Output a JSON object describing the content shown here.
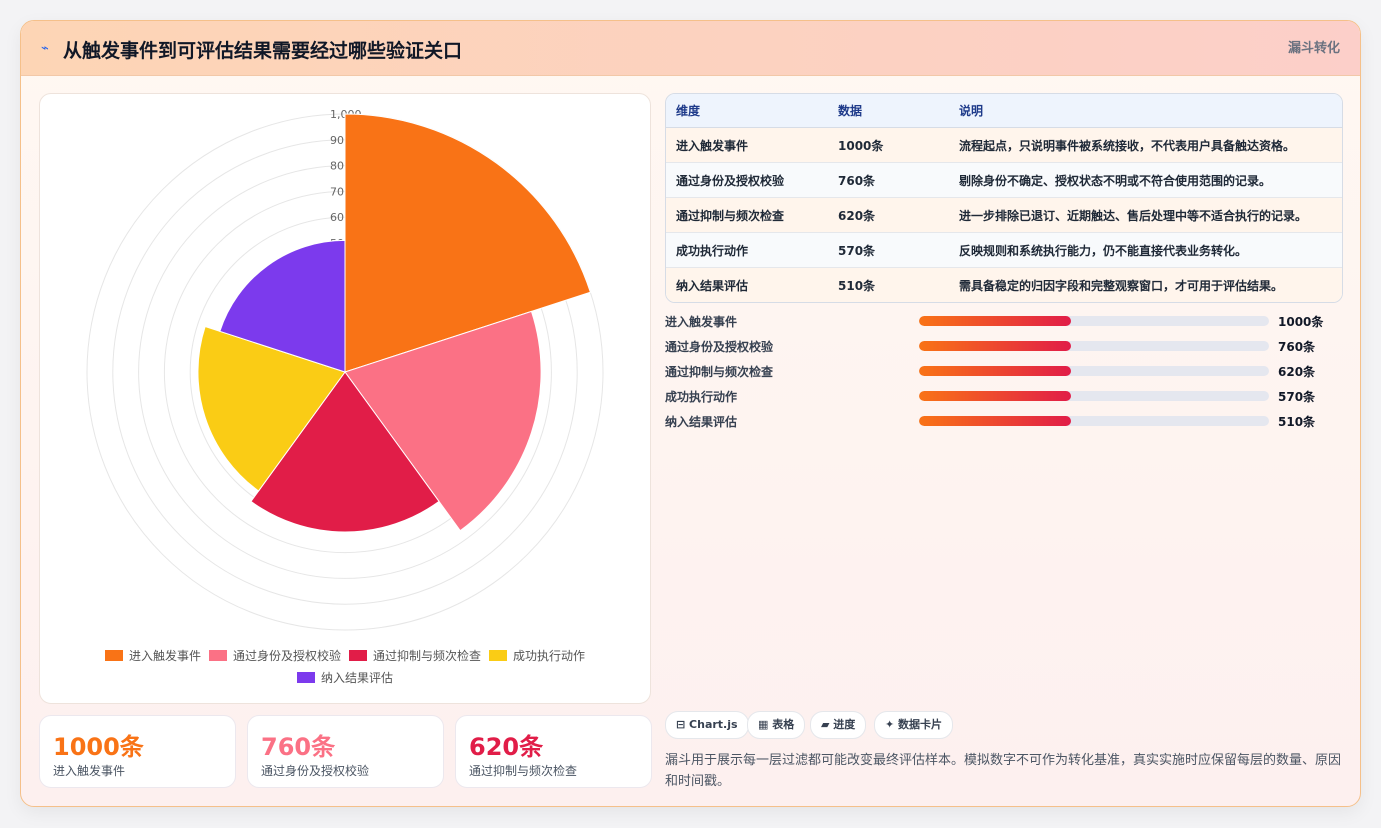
{
  "header": {
    "title": "从触发事件到可评估结果需要经过哪些验证关口",
    "tag": "漏斗转化",
    "title_icon": "bolt-icon"
  },
  "chart_data": {
    "type": "polarArea",
    "categories": [
      "进入触发事件",
      "通过身份及授权校验",
      "通过抑制与频次检查",
      "成功执行动作",
      "纳入结果评估"
    ],
    "values": [
      1000,
      760,
      620,
      570,
      510
    ],
    "colors": [
      "#f97316",
      "#fb7185",
      "#e11d48",
      "#facc15",
      "#7c3aed"
    ],
    "r_ticks": [
      "1,000",
      "900",
      "800",
      "700",
      "600",
      "500"
    ],
    "rlim": [
      0,
      1000
    ],
    "r_grid_values": [
      0,
      100,
      200,
      300,
      400,
      500,
      600,
      700,
      800,
      900,
      1000
    ],
    "grid": true,
    "legend": "bottom"
  },
  "stats": [
    {
      "value": "1000条",
      "label": "进入触发事件",
      "color": "#f97316"
    },
    {
      "value": "760条",
      "label": "通过身份及授权校验",
      "color": "#fb7185"
    },
    {
      "value": "620条",
      "label": "通过抑制与频次检查",
      "color": "#e11d48"
    }
  ],
  "table": {
    "headers": [
      "维度",
      "数据",
      "说明"
    ],
    "rows": [
      [
        "进入触发事件",
        "1000条",
        "流程起点，只说明事件被系统接收，不代表用户具备触达资格。"
      ],
      [
        "通过身份及授权校验",
        "760条",
        "剔除身份不确定、授权状态不明或不符合使用范围的记录。"
      ],
      [
        "通过抑制与频次检查",
        "620条",
        "进一步排除已退订、近期触达、售后处理中等不适合执行的记录。"
      ],
      [
        "成功执行动作",
        "570条",
        "反映规则和系统执行能力，仍不能直接代表业务转化。"
      ],
      [
        "纳入结果评估",
        "510条",
        "需具备稳定的归因字段和完整观察窗口，才可用于评估结果。"
      ]
    ]
  },
  "progress": [
    {
      "label": "进入触发事件",
      "value": "1000条",
      "fraction": 0.435
    },
    {
      "label": "通过身份及授权校验",
      "value": "760条",
      "fraction": 0.435
    },
    {
      "label": "通过抑制与频次检查",
      "value": "620条",
      "fraction": 0.435
    },
    {
      "label": "成功执行动作",
      "value": "570条",
      "fraction": 0.435
    },
    {
      "label": "纳入结果评估",
      "value": "510条",
      "fraction": 0.435
    }
  ],
  "chips": [
    "⊟ Chart.js",
    "▦ 表格",
    "▰ 进度",
    "✦ 数据卡片"
  ],
  "note": "漏斗用于展示每一层过滤都可能改变最终评估样本。模拟数字不可作为转化基准，真实实施时应保留每层的数量、原因和时间戳。"
}
